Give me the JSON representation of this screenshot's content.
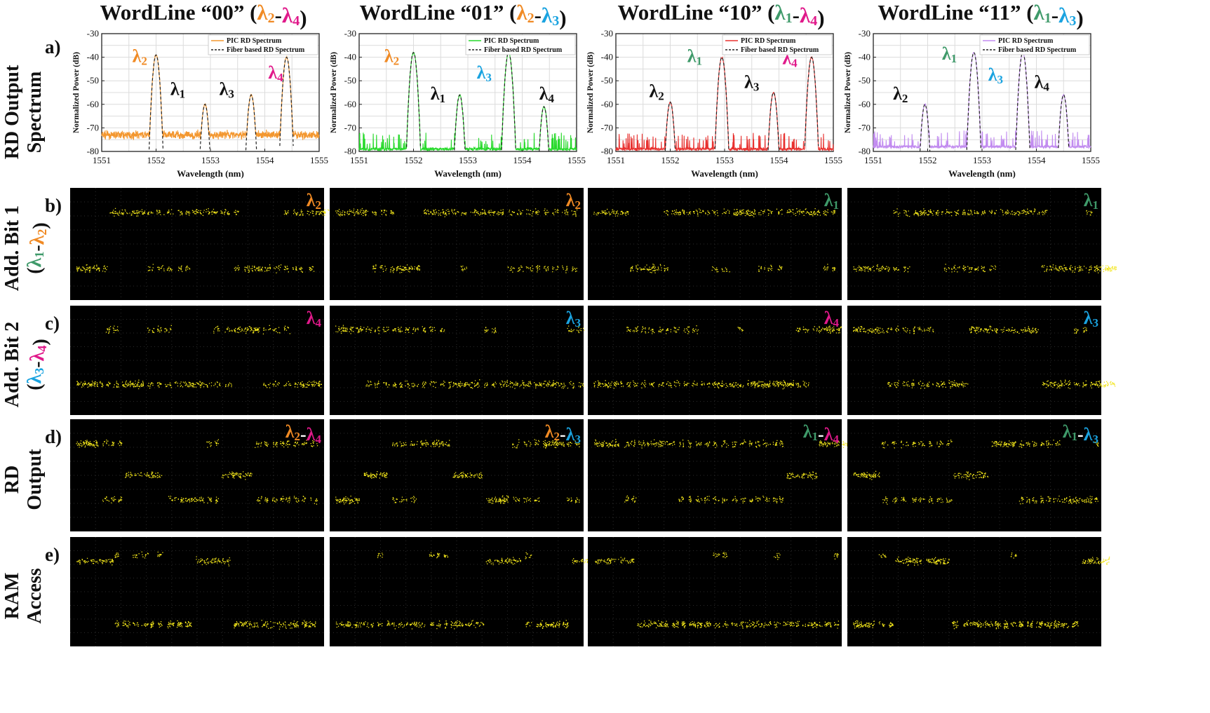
{
  "colors": {
    "lambda1": "#3f9a6a",
    "lambda2": "#f08a24",
    "lambda3": "#1aa3e0",
    "lambda4": "#e0198a",
    "black": "#111111",
    "scope_bg": "#000000",
    "scope_trace": "#f2e51a",
    "series": [
      "#f3972f",
      "#27d92b",
      "#e8312f",
      "#c28cf0"
    ]
  },
  "lambda_glyph": "λ",
  "columns": [
    {
      "title_prefix": "WordLine “00” (",
      "title_suffix": ")",
      "range": [
        2,
        4
      ],
      "chart_data": {
        "type": "line",
        "xlabel": "Wavelength (nm)",
        "ylabel": "Normalized Power (dB)",
        "xlim": [
          1551,
          1555
        ],
        "ylim": [
          -80,
          -30
        ],
        "xticks": [
          1551,
          1552,
          1553,
          1554,
          1555
        ],
        "yticks": [
          -30,
          -40,
          -50,
          -60,
          -70,
          -80
        ],
        "grid": true,
        "legend_position": "top-right",
        "series": [
          {
            "name": "PIC RD Spectrum",
            "style": "solid",
            "noise_floor": -73
          },
          {
            "name": "Fiber based RD Spectrum",
            "style": "dashed"
          }
        ],
        "peaks": [
          {
            "lambda": 2,
            "x": 1552.0,
            "y": -39
          },
          {
            "lambda": 1,
            "x": 1552.9,
            "y": -60
          },
          {
            "lambda": 3,
            "x": 1553.75,
            "y": -56
          },
          {
            "lambda": 4,
            "x": 1554.4,
            "y": -40
          }
        ],
        "peak_labels": [
          {
            "lambda": 2,
            "x": 1551.7,
            "y": -42,
            "color": "lambda2"
          },
          {
            "lambda": 1,
            "x": 1552.4,
            "y": -56,
            "color": "black"
          },
          {
            "lambda": 3,
            "x": 1553.3,
            "y": -56,
            "color": "black"
          },
          {
            "lambda": 4,
            "x": 1554.2,
            "y": -49,
            "color": "lambda4"
          }
        ]
      },
      "scope_tags": [
        [
          {
            "lambda": 2,
            "color": "lambda2"
          }
        ],
        [
          {
            "lambda": 4,
            "color": "lambda4"
          }
        ],
        [
          {
            "lambda": 2,
            "color": "lambda2"
          },
          {
            "lambda": 4,
            "color": "lambda4"
          }
        ]
      ]
    },
    {
      "title_prefix": "WordLine “01” (",
      "title_suffix": ")",
      "range": [
        2,
        3
      ],
      "chart_data": {
        "type": "line",
        "xlabel": "Wavelength (nm)",
        "ylabel": "Normalized Power (dB)",
        "xlim": [
          1551,
          1555
        ],
        "ylim": [
          -80,
          -30
        ],
        "xticks": [
          1551,
          1552,
          1553,
          1554,
          1555
        ],
        "yticks": [
          -30,
          -40,
          -50,
          -60,
          -70,
          -80
        ],
        "grid": true,
        "legend_position": "top-right",
        "series": [
          {
            "name": "PIC RD Spectrum",
            "style": "solid",
            "noise_floor": -79
          },
          {
            "name": "Fiber based RD Spectrum",
            "style": "dashed"
          }
        ],
        "peaks": [
          {
            "lambda": 2,
            "x": 1552.0,
            "y": -38
          },
          {
            "lambda": 1,
            "x": 1552.85,
            "y": -56
          },
          {
            "lambda": 3,
            "x": 1553.75,
            "y": -38
          },
          {
            "lambda": 4,
            "x": 1554.4,
            "y": -61
          }
        ],
        "peak_labels": [
          {
            "lambda": 2,
            "x": 1551.6,
            "y": -42,
            "color": "lambda2"
          },
          {
            "lambda": 1,
            "x": 1552.45,
            "y": -58,
            "color": "black"
          },
          {
            "lambda": 3,
            "x": 1553.3,
            "y": -49,
            "color": "lambda3"
          },
          {
            "lambda": 4,
            "x": 1554.45,
            "y": -58,
            "color": "black"
          }
        ]
      },
      "scope_tags": [
        [
          {
            "lambda": 2,
            "color": "lambda2"
          }
        ],
        [
          {
            "lambda": 3,
            "color": "lambda3"
          }
        ],
        [
          {
            "lambda": 2,
            "color": "lambda2"
          },
          {
            "lambda": 3,
            "color": "lambda3"
          }
        ]
      ]
    },
    {
      "title_prefix": "WordLine “10” (",
      "title_suffix": ")",
      "range": [
        1,
        4
      ],
      "chart_data": {
        "type": "line",
        "xlabel": "Wavelength (nm)",
        "ylabel": "Normalized Power (dB)",
        "xlim": [
          1551,
          1555
        ],
        "ylim": [
          -80,
          -30
        ],
        "xticks": [
          1551,
          1552,
          1553,
          1554,
          1555
        ],
        "yticks": [
          -30,
          -40,
          -50,
          -60,
          -70,
          -80
        ],
        "grid": true,
        "legend_position": "top-right",
        "series": [
          {
            "name": "PIC RD Spectrum",
            "style": "solid",
            "noise_floor": -79
          },
          {
            "name": "Fiber based RD Spectrum",
            "style": "dashed"
          }
        ],
        "peaks": [
          {
            "lambda": 2,
            "x": 1552.0,
            "y": -59
          },
          {
            "lambda": 1,
            "x": 1552.95,
            "y": -40
          },
          {
            "lambda": 3,
            "x": 1553.9,
            "y": -55
          },
          {
            "lambda": 4,
            "x": 1554.6,
            "y": -40
          }
        ],
        "peak_labels": [
          {
            "lambda": 2,
            "x": 1551.75,
            "y": -57,
            "color": "black"
          },
          {
            "lambda": 1,
            "x": 1552.45,
            "y": -42,
            "color": "lambda1"
          },
          {
            "lambda": 3,
            "x": 1553.5,
            "y": -53,
            "color": "black"
          },
          {
            "lambda": 4,
            "x": 1554.2,
            "y": -43,
            "color": "lambda4"
          }
        ]
      },
      "scope_tags": [
        [
          {
            "lambda": 1,
            "color": "lambda1"
          }
        ],
        [
          {
            "lambda": 4,
            "color": "lambda4"
          }
        ],
        [
          {
            "lambda": 1,
            "color": "lambda1"
          },
          {
            "lambda": 4,
            "color": "lambda4"
          }
        ]
      ]
    },
    {
      "title_prefix": "WordLine “11” (",
      "title_suffix": ")",
      "range": [
        1,
        3
      ],
      "chart_data": {
        "type": "line",
        "xlabel": "Wavelength (nm)",
        "ylabel": "Normalized Power (dB)",
        "xlim": [
          1551,
          1555
        ],
        "ylim": [
          -80,
          -30
        ],
        "xticks": [
          1551,
          1552,
          1553,
          1554,
          1555
        ],
        "yticks": [
          -30,
          -40,
          -50,
          -60,
          -70,
          -80
        ],
        "grid": true,
        "legend_position": "top-right",
        "series": [
          {
            "name": "PIC RD Spectrum",
            "style": "solid",
            "noise_floor": -78
          },
          {
            "name": "Fiber based RD Spectrum",
            "style": "dashed"
          }
        ],
        "peaks": [
          {
            "lambda": 2,
            "x": 1551.95,
            "y": -60
          },
          {
            "lambda": 1,
            "x": 1552.85,
            "y": -38
          },
          {
            "lambda": 3,
            "x": 1553.75,
            "y": -38
          },
          {
            "lambda": 4,
            "x": 1554.5,
            "y": -56
          }
        ],
        "peak_labels": [
          {
            "lambda": 2,
            "x": 1551.5,
            "y": -58,
            "color": "black"
          },
          {
            "lambda": 1,
            "x": 1552.4,
            "y": -41,
            "color": "lambda1"
          },
          {
            "lambda": 3,
            "x": 1553.25,
            "y": -50,
            "color": "lambda3"
          },
          {
            "lambda": 4,
            "x": 1554.1,
            "y": -53,
            "color": "black"
          }
        ]
      },
      "scope_tags": [
        [
          {
            "lambda": 1,
            "color": "lambda1"
          }
        ],
        [
          {
            "lambda": 3,
            "color": "lambda3"
          }
        ],
        [
          {
            "lambda": 1,
            "color": "lambda1"
          },
          {
            "lambda": 3,
            "color": "lambda3"
          }
        ]
      ]
    }
  ],
  "rows": [
    {
      "letter": "a)",
      "label_lines": [
        {
          "text": "RD Output"
        },
        {
          "text": "Spectrum"
        }
      ]
    },
    {
      "letter": "b)",
      "label_lines": [
        {
          "text": "Add. Bit 1"
        },
        {
          "text": "",
          "lambdas": [
            1,
            2
          ]
        }
      ]
    },
    {
      "letter": "c)",
      "label_lines": [
        {
          "text": "Add. Bit 2"
        },
        {
          "text": "",
          "lambdas": [
            3,
            4
          ]
        }
      ]
    },
    {
      "letter": "d)",
      "label_lines": [
        {
          "text": "RD"
        },
        {
          "text": "Output"
        }
      ]
    },
    {
      "letter": "e)",
      "label_lines": [
        {
          "text": "RAM"
        },
        {
          "text": "Access"
        }
      ]
    }
  ]
}
